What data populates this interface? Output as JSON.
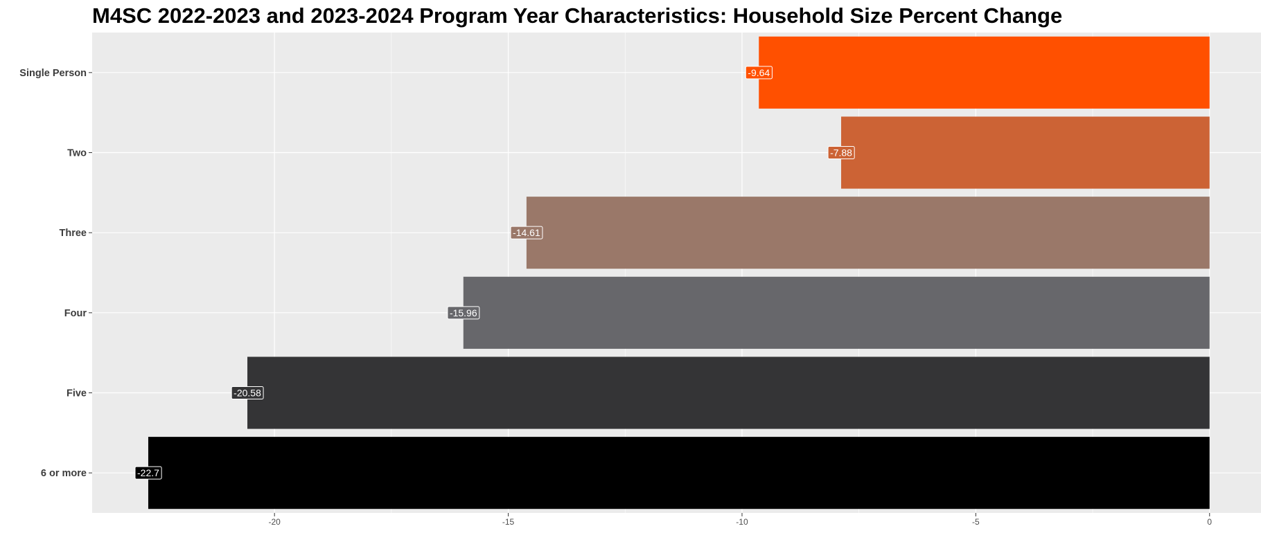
{
  "chart_data": {
    "type": "bar",
    "orientation": "horizontal",
    "title": "M4SC 2022-2023 and 2023-2024 Program Year Characteristics: Household Size Percent Change",
    "xlabel": "",
    "ylabel": "",
    "categories": [
      "Single Person",
      "Two",
      "Three",
      "Four",
      "Five",
      "6 or more"
    ],
    "values": [
      -9.64,
      -7.88,
      -14.61,
      -15.96,
      -20.58,
      -22.7
    ],
    "data_labels": [
      "-9.64",
      "-7.88",
      "-14.61",
      "-15.96",
      "-20.58",
      "-22.7"
    ],
    "colors": [
      "#ff5000",
      "#cc6335",
      "#9a7869",
      "#67676b",
      "#343436",
      "#000000"
    ],
    "xlim": [
      -23.9,
      1.1
    ],
    "xticks": [
      -20,
      -15,
      -10,
      -5,
      0
    ],
    "xtick_labels": [
      "-20",
      "-15",
      "-10",
      "-5",
      "0"
    ],
    "grid": true,
    "panel_background": "#ebebeb",
    "legend": "none"
  }
}
